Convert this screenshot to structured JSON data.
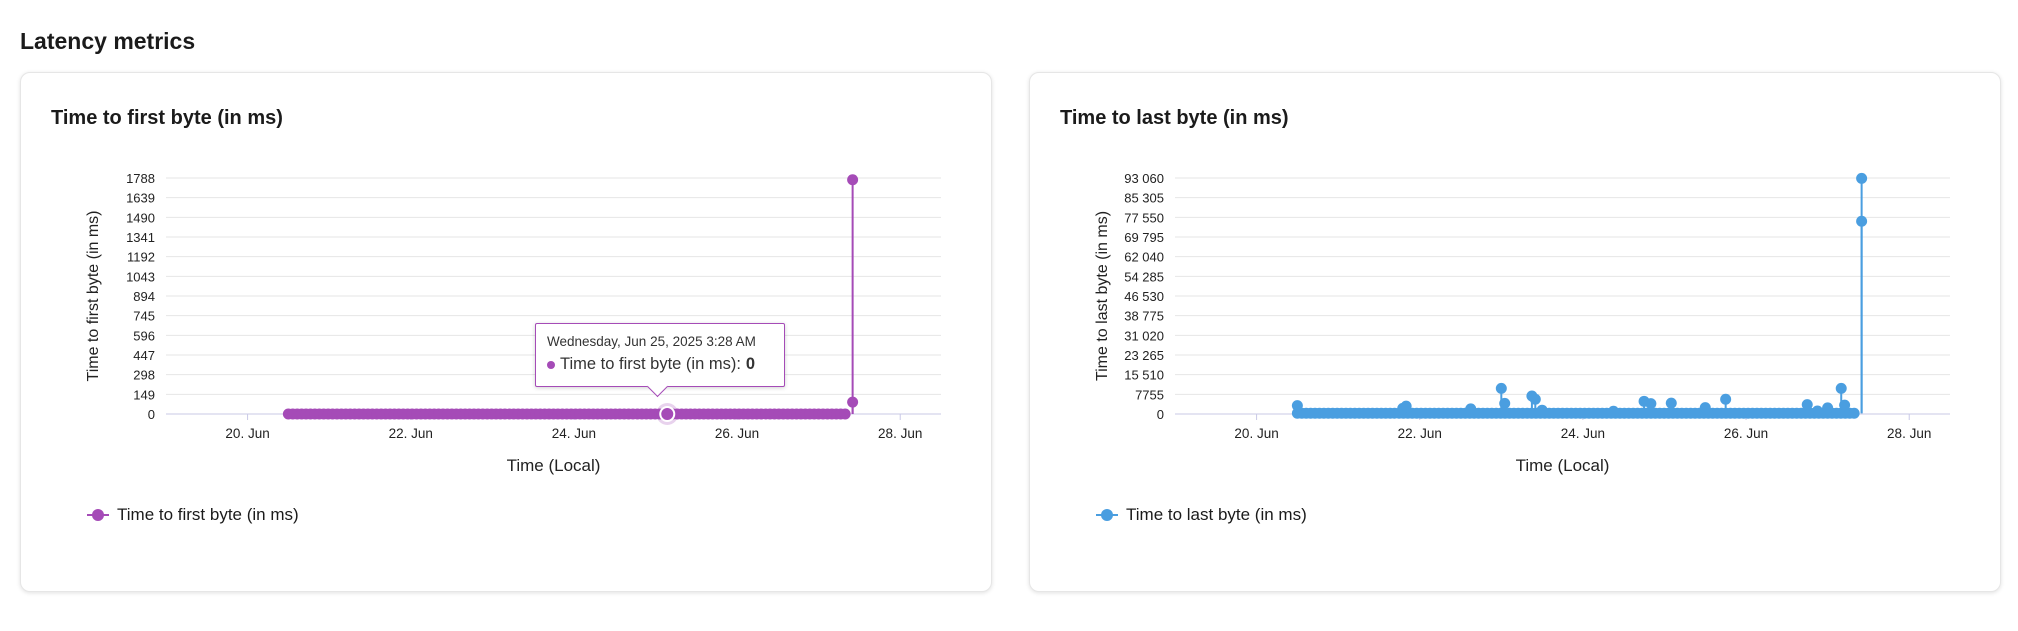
{
  "section_title": "Latency metrics",
  "charts": [
    {
      "card_title": "Time to first byte (in ms)",
      "color": "#a54bb7",
      "legend_label": "Time to first byte (in ms)",
      "tooltip": {
        "date": "Wednesday, Jun 25, 2025 3:28 AM",
        "series_label": "Time to first byte (in ms):",
        "value": "0"
      }
    },
    {
      "card_title": "Time to last byte (in ms)",
      "color": "#4a9ee0",
      "legend_label": "Time to last byte (in ms)"
    }
  ],
  "chart_data": [
    {
      "type": "line",
      "title": "Time to first byte (in ms)",
      "xlabel": "Time (Local)",
      "ylabel": "Time to first byte (in ms)",
      "x_tick_labels": [
        "20. Jun",
        "22. Jun",
        "24. Jun",
        "26. Jun",
        "28. Jun"
      ],
      "y_tick_labels": [
        "0",
        "149",
        "298",
        "447",
        "596",
        "745",
        "894",
        "1043",
        "1192",
        "1341",
        "1490",
        "1639",
        "1788"
      ],
      "ylim": [
        0,
        1788
      ],
      "xlim": [
        "2025-06-19",
        "2025-06-28T12:00"
      ],
      "grid": true,
      "legend": "bottom-left",
      "series": [
        {
          "name": "Time to first byte (in ms)",
          "baseline": {
            "from": "2025-06-20T12:00",
            "to": "2025-06-27T09:00",
            "interval_hours": 1.3,
            "value": 0
          },
          "points": [
            {
              "x": "2025-06-27T10:00",
              "y": 90
            },
            {
              "x": "2025-06-27T10:00",
              "y": 1775
            }
          ]
        }
      ]
    },
    {
      "type": "line",
      "title": "Time to last byte (in ms)",
      "xlabel": "Time (Local)",
      "ylabel": "Time to last byte (in ms)",
      "x_tick_labels": [
        "20. Jun",
        "22. Jun",
        "24. Jun",
        "26. Jun",
        "28. Jun"
      ],
      "y_tick_labels": [
        "0",
        "7755",
        "15 510",
        "23 265",
        "31 020",
        "38 775",
        "46 530",
        "54 285",
        "62 040",
        "69 795",
        "77 550",
        "85 305",
        "93 060"
      ],
      "ylim": [
        0,
        93060
      ],
      "xlim": [
        "2025-06-19",
        "2025-06-28T12:00"
      ],
      "grid": true,
      "legend": "bottom-left",
      "series": [
        {
          "name": "Time to last byte (in ms)",
          "baseline": {
            "from": "2025-06-20T12:00",
            "to": "2025-06-27T09:00",
            "interval_hours": 1.3,
            "value": 300
          },
          "points": [
            {
              "x": "2025-06-20T12:00",
              "y": 3300
            },
            {
              "x": "2025-06-21T19:00",
              "y": 2200
            },
            {
              "x": "2025-06-21T20:00",
              "y": 3100
            },
            {
              "x": "2025-06-22T15:00",
              "y": 2000
            },
            {
              "x": "2025-06-23T00:00",
              "y": 10100
            },
            {
              "x": "2025-06-23T01:00",
              "y": 4200
            },
            {
              "x": "2025-06-23T09:00",
              "y": 7100
            },
            {
              "x": "2025-06-23T10:00",
              "y": 5800
            },
            {
              "x": "2025-06-23T12:00",
              "y": 1500
            },
            {
              "x": "2025-06-24T09:00",
              "y": 1100
            },
            {
              "x": "2025-06-24T18:00",
              "y": 5000
            },
            {
              "x": "2025-06-24T20:00",
              "y": 4100
            },
            {
              "x": "2025-06-25T02:00",
              "y": 4300
            },
            {
              "x": "2025-06-25T12:00",
              "y": 2500
            },
            {
              "x": "2025-06-25T18:00",
              "y": 5800
            },
            {
              "x": "2025-06-26T18:00",
              "y": 3700
            },
            {
              "x": "2025-06-26T21:00",
              "y": 1200
            },
            {
              "x": "2025-06-27T00:00",
              "y": 2400
            },
            {
              "x": "2025-06-27T04:00",
              "y": 10100
            },
            {
              "x": "2025-06-27T05:00",
              "y": 3500
            },
            {
              "x": "2025-06-27T10:00",
              "y": 76000
            },
            {
              "x": "2025-06-27T10:00",
              "y": 92900
            }
          ]
        }
      ]
    }
  ]
}
